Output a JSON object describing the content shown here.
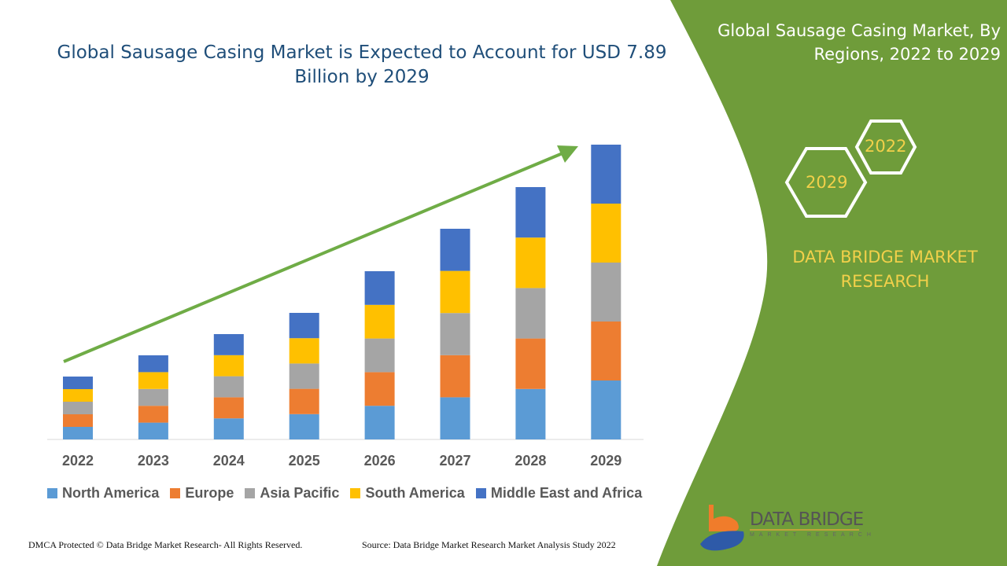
{
  "title": "Global Sausage Casing Market is Expected to Account for USD 7.89 Billion by 2029",
  "side_panel": {
    "title": "Global Sausage Casing Market, By Regions, 2022 to 2029",
    "hex_year_1": "2022",
    "hex_year_2": "2029",
    "brand": "DATA BRIDGE MARKET RESEARCH",
    "logo_text": "DATA BRIDGE",
    "logo_sub": "MARKET RESEARCH",
    "color": "#6f9c3a"
  },
  "footer": {
    "left": "DMCA Protected © Data Bridge Market Research- All Rights Reserved.",
    "right": "Source: Data Bridge Market Research Market Analysis Study 2022"
  },
  "chart_data": {
    "type": "bar",
    "stacked": true,
    "categories": [
      "2022",
      "2023",
      "2024",
      "2025",
      "2026",
      "2027",
      "2028",
      "2029"
    ],
    "series": [
      {
        "name": "North America",
        "color": "#5b9bd5",
        "values": [
          16,
          21.4,
          26.8,
          32.2,
          42.8,
          53.6,
          64.2,
          75
        ]
      },
      {
        "name": "Europe",
        "color": "#ed7d31",
        "values": [
          16,
          21.4,
          26.8,
          32.2,
          42.8,
          53.6,
          64.2,
          75
        ]
      },
      {
        "name": "Asia Pacific",
        "color": "#a5a5a5",
        "values": [
          16,
          21.4,
          26.8,
          32.2,
          42.8,
          53.6,
          64.2,
          75
        ]
      },
      {
        "name": "South America",
        "color": "#ffc000",
        "values": [
          16,
          21.4,
          26.8,
          32.2,
          42.8,
          53.6,
          64.2,
          75
        ]
      },
      {
        "name": "Middle East and Africa",
        "color": "#4472c4",
        "values": [
          16,
          21.4,
          26.8,
          32.2,
          42.8,
          53.6,
          64.2,
          75
        ]
      }
    ],
    "legend": "bottom",
    "grid": false,
    "trend_arrow": true
  }
}
